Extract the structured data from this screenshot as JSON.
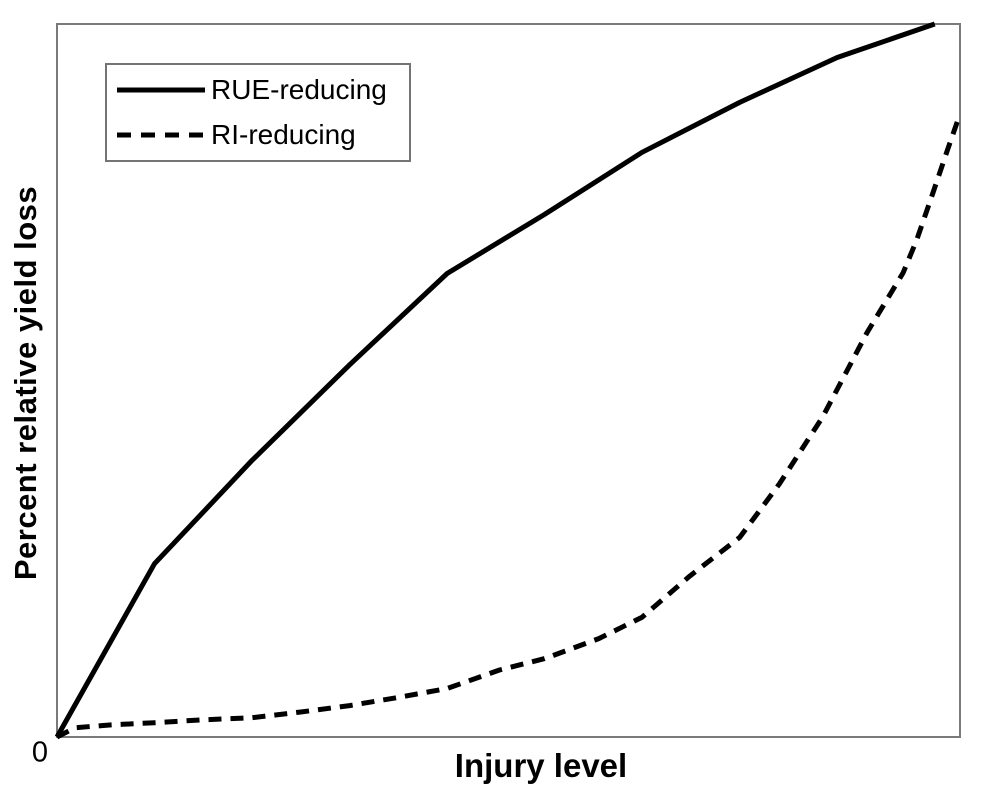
{
  "chart_data": {
    "type": "line",
    "title": "",
    "xlabel": "Injury level",
    "ylabel": "Percent relative yield loss",
    "origin_label": "0",
    "x_axis": {
      "range_normalized": [
        0,
        1
      ],
      "tick_labels": [
        "0"
      ],
      "grid": false
    },
    "y_axis": {
      "range_normalized": [
        0,
        1
      ],
      "tick_labels": [],
      "grid": false
    },
    "legend": {
      "position": "top-left",
      "border": true,
      "entries": [
        "RUE-reducing",
        "RI-reducing"
      ]
    },
    "series": [
      {
        "name": "RUE-reducing",
        "line_style": "solid",
        "color": "#000000",
        "points": [
          [
            0,
            0
          ],
          [
            0.108,
            0.243
          ],
          [
            0.216,
            0.388
          ],
          [
            0.324,
            0.522
          ],
          [
            0.432,
            0.65
          ],
          [
            0.54,
            0.733
          ],
          [
            0.648,
            0.82
          ],
          [
            0.756,
            0.89
          ],
          [
            0.864,
            0.953
          ],
          [
            0.972,
            1.0
          ]
        ]
      },
      {
        "name": "RI-reducing",
        "line_style": "dashed",
        "color": "#000000",
        "points": [
          [
            0,
            0
          ],
          [
            0.02,
            0.013
          ],
          [
            0.06,
            0.017
          ],
          [
            0.108,
            0.02
          ],
          [
            0.16,
            0.024
          ],
          [
            0.216,
            0.027
          ],
          [
            0.27,
            0.035
          ],
          [
            0.324,
            0.044
          ],
          [
            0.38,
            0.056
          ],
          [
            0.432,
            0.068
          ],
          [
            0.49,
            0.094
          ],
          [
            0.54,
            0.11
          ],
          [
            0.6,
            0.138
          ],
          [
            0.648,
            0.168
          ],
          [
            0.7,
            0.225
          ],
          [
            0.756,
            0.28
          ],
          [
            0.8,
            0.355
          ],
          [
            0.848,
            0.449
          ],
          [
            0.897,
            0.567
          ],
          [
            0.937,
            0.651
          ],
          [
            0.952,
            0.697
          ],
          [
            0.97,
            0.763
          ],
          [
            0.986,
            0.823
          ],
          [
            0.997,
            0.863
          ]
        ]
      }
    ],
    "colors": {
      "frame": "#7a7a7a",
      "line": "#000000",
      "background": "#ffffff",
      "text": "#000000"
    }
  }
}
